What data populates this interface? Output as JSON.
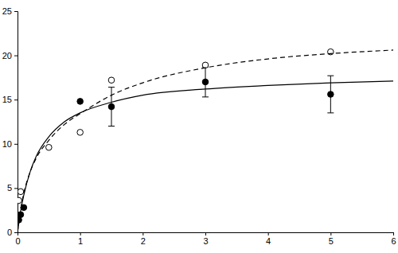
{
  "chart_data": {
    "type": "scatter",
    "xlim": [
      0,
      6
    ],
    "xticks": [
      0,
      1,
      2,
      3,
      4,
      5,
      6
    ],
    "ylim": [
      0,
      25
    ],
    "yticks": [
      0,
      5,
      10,
      15,
      20,
      25
    ],
    "series": [
      {
        "type": "scatter",
        "marker": "filled",
        "color": "#000000",
        "x": [
          0.02,
          0.05,
          0.1,
          1,
          1.5,
          3,
          5
        ],
        "values": [
          1.4,
          2.0,
          2.8,
          14.8,
          14.2,
          17.0,
          15.6
        ],
        "errors": [
          null,
          null,
          null,
          null,
          2.2,
          1.7,
          2.1
        ]
      },
      {
        "type": "scatter",
        "marker": "open",
        "color": "#000000",
        "x": [
          0.02,
          0.05,
          0.5,
          1,
          1.5,
          3,
          5
        ],
        "values": [
          3.6,
          4.6,
          9.6,
          11.3,
          17.2,
          18.9,
          20.4
        ]
      },
      {
        "type": "line",
        "line_style": "solid",
        "color": "#000000",
        "x": [
          0,
          0.05,
          0.1,
          0.2,
          0.3,
          0.5,
          0.75,
          1,
          1.5,
          2,
          3,
          4,
          5,
          6
        ],
        "values": [
          0,
          2.4,
          4.2,
          6.8,
          8.6,
          10.8,
          12.5,
          13.5,
          14.7,
          15.5,
          16.2,
          16.6,
          16.9,
          17.1
        ]
      },
      {
        "type": "line",
        "line_style": "dashed",
        "color": "#000000",
        "x": [
          0,
          0.05,
          0.1,
          0.2,
          0.3,
          0.5,
          0.75,
          1,
          1.5,
          2,
          3,
          4,
          5,
          6
        ],
        "values": [
          0,
          2.6,
          4.4,
          6.8,
          8.4,
          10.4,
          12.2,
          13.4,
          15.5,
          16.9,
          18.6,
          19.6,
          20.2,
          20.6
        ]
      }
    ]
  }
}
